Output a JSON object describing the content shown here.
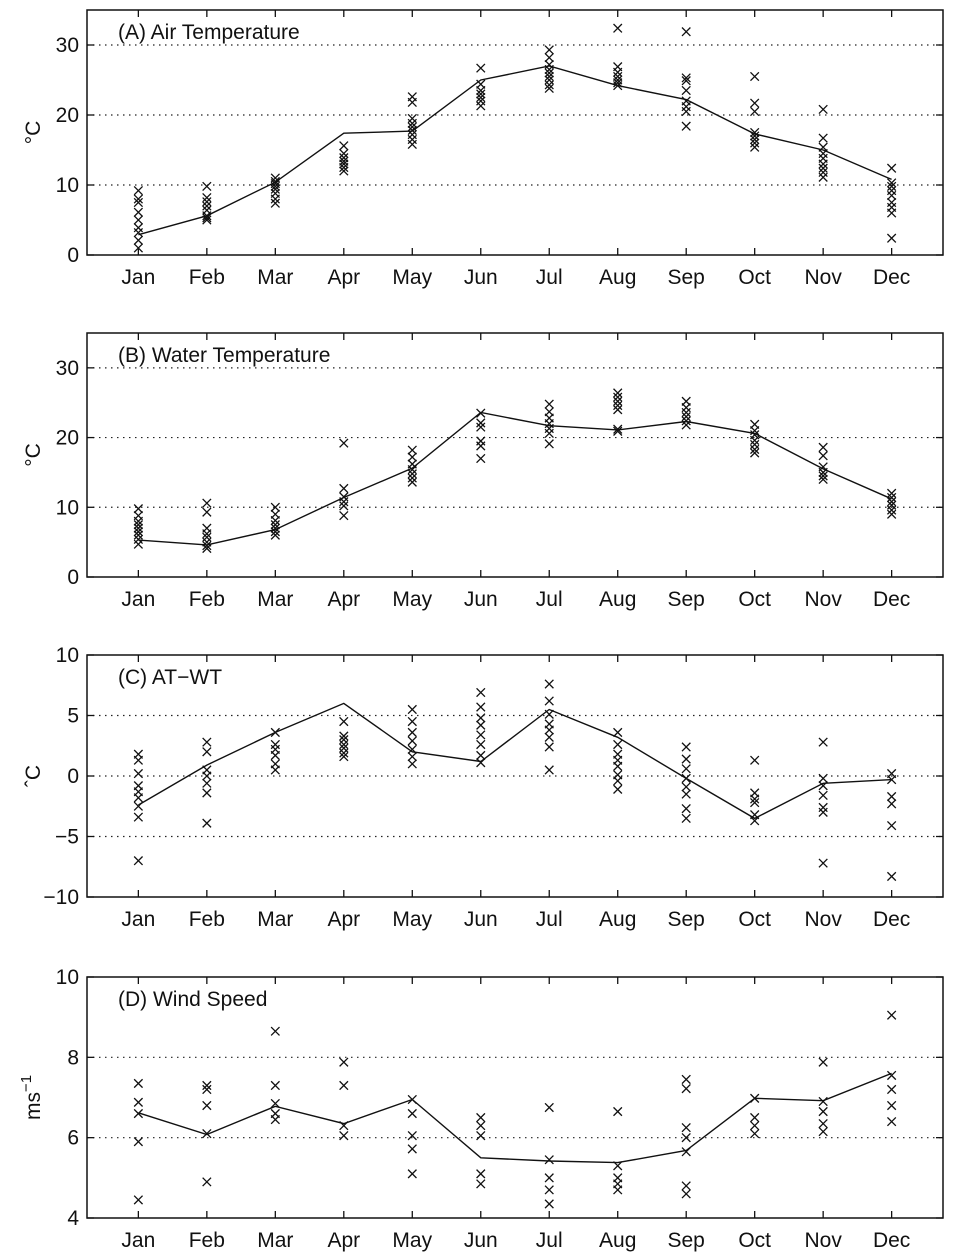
{
  "chart_data": [
    {
      "type": "line",
      "title": "(A) Air Temperature",
      "ylabel": "°C",
      "categories": [
        "Jan",
        "Feb",
        "Mar",
        "Apr",
        "May",
        "Jun",
        "Jul",
        "Aug",
        "Sep",
        "Oct",
        "Nov",
        "Dec"
      ],
      "ylim": [
        0,
        35
      ],
      "yticks": [
        0,
        10,
        20,
        30
      ],
      "grid": [
        10,
        20,
        30
      ],
      "series": [
        {
          "values": [
            2.9,
            5.6,
            10.4,
            17.4,
            17.7,
            25.0,
            27.0,
            24.2,
            22.2,
            17.3,
            15.0,
            10.8
          ]
        }
      ],
      "scatter": [
        [
          9.2,
          8.0,
          7.5,
          6.1,
          5.0,
          3.9,
          3.2,
          2.1,
          1.0
        ],
        [
          9.8,
          8.2,
          7.6,
          7.0,
          6.4,
          5.6,
          5.3,
          5.0
        ],
        [
          11.0,
          10.5,
          10.2,
          9.8,
          9.4,
          8.8,
          8.0,
          7.4
        ],
        [
          15.6,
          14.5,
          13.9,
          13.4,
          13.0,
          12.5,
          12.0
        ],
        [
          22.6,
          21.8,
          19.5,
          18.8,
          18.3,
          17.8,
          17.2,
          16.5,
          15.8
        ],
        [
          26.7,
          24.4,
          23.5,
          23.0,
          22.5,
          22.0,
          21.3
        ],
        [
          29.3,
          28.2,
          27.2,
          26.5,
          26.0,
          25.5,
          25.0,
          24.3,
          23.8
        ],
        [
          32.4,
          26.9,
          26.1,
          25.5,
          25.0,
          24.6,
          24.2
        ],
        [
          31.9,
          25.3,
          24.9,
          23.5,
          22.0,
          21.2,
          20.5,
          18.4
        ],
        [
          25.5,
          21.7,
          20.5,
          17.5,
          17.0,
          16.5,
          16.0,
          15.4
        ],
        [
          20.8,
          16.7,
          15.4,
          14.5,
          13.8,
          13.0,
          12.4,
          11.8,
          11.1
        ],
        [
          12.4,
          10.3,
          9.8,
          9.2,
          8.5,
          7.5,
          6.8,
          6.0,
          2.4
        ]
      ]
    },
    {
      "type": "line",
      "title": "(B) Water Temperature",
      "ylabel": "°C",
      "categories": [
        "Jan",
        "Feb",
        "Mar",
        "Apr",
        "May",
        "Jun",
        "Jul",
        "Aug",
        "Sep",
        "Oct",
        "Nov",
        "Dec"
      ],
      "ylim": [
        0,
        35
      ],
      "yticks": [
        0,
        10,
        20,
        30
      ],
      "grid": [
        10,
        20,
        30
      ],
      "series": [
        {
          "values": [
            5.3,
            4.6,
            6.8,
            11.4,
            15.6,
            23.6,
            21.7,
            21.1,
            22.3,
            20.6,
            15.5,
            11.2
          ]
        }
      ],
      "scatter": [
        [
          9.8,
          8.8,
          8.0,
          7.5,
          7.0,
          6.5,
          6.0,
          5.4,
          4.7
        ],
        [
          10.6,
          9.3,
          7.0,
          6.2,
          5.7,
          5.0,
          4.5,
          4.1
        ],
        [
          10.0,
          9.0,
          8.1,
          7.5,
          7.0,
          6.5,
          6.0
        ],
        [
          19.2,
          12.7,
          11.5,
          10.8,
          10.2,
          8.8
        ],
        [
          18.2,
          17.2,
          16.2,
          15.4,
          14.8,
          14.2,
          13.6
        ],
        [
          23.5,
          22.1,
          21.5,
          19.5,
          18.8,
          17.0
        ],
        [
          24.8,
          23.7,
          22.8,
          22.0,
          21.3,
          20.6,
          19.1
        ],
        [
          26.4,
          25.8,
          25.2,
          24.6,
          24.0,
          21.2,
          20.9
        ],
        [
          25.2,
          24.3,
          23.6,
          23.0,
          22.4,
          21.8
        ],
        [
          21.9,
          21.0,
          20.4,
          19.6,
          19.0,
          18.3,
          17.8
        ],
        [
          18.6,
          17.4,
          15.8,
          15.0,
          14.5,
          14.0
        ],
        [
          12.0,
          11.4,
          10.8,
          10.3,
          9.6,
          9.0
        ]
      ]
    },
    {
      "type": "line",
      "title": "(C) AT−WT",
      "ylabel": "ˆC",
      "categories": [
        "Jan",
        "Feb",
        "Mar",
        "Apr",
        "May",
        "Jun",
        "Jul",
        "Aug",
        "Sep",
        "Oct",
        "Nov",
        "Dec"
      ],
      "ylim": [
        -10,
        10
      ],
      "yticks": [
        -10,
        -5,
        0,
        5,
        10
      ],
      "grid": [
        -5,
        0,
        5
      ],
      "series": [
        {
          "values": [
            -2.4,
            0.9,
            3.6,
            6.0,
            2.0,
            1.2,
            5.5,
            3.2,
            -0.2,
            -3.5,
            -0.6,
            -0.3
          ]
        }
      ],
      "scatter": [
        [
          1.8,
          1.3,
          0.2,
          -0.8,
          -1.3,
          -1.8,
          -2.5,
          -3.4,
          -7.0
        ],
        [
          2.8,
          2.0,
          0.5,
          0.0,
          -0.6,
          -1.4,
          -3.9
        ],
        [
          3.6,
          2.6,
          2.2,
          1.7,
          1.0,
          0.5
        ],
        [
          4.5,
          3.3,
          3.0,
          2.6,
          2.3,
          1.9,
          1.6
        ],
        [
          5.5,
          4.5,
          3.6,
          2.9,
          2.2,
          1.6,
          1.0
        ],
        [
          6.9,
          5.7,
          4.8,
          4.2,
          3.4,
          2.6,
          1.7,
          1.1
        ],
        [
          7.6,
          6.2,
          5.1,
          4.3,
          3.8,
          3.2,
          2.4,
          0.5
        ],
        [
          3.6,
          2.6,
          1.8,
          1.3,
          0.8,
          0.1,
          -0.4,
          -1.1
        ],
        [
          2.4,
          1.4,
          0.6,
          -0.2,
          -0.9,
          -1.5,
          -2.7,
          -3.5
        ],
        [
          1.3,
          -1.4,
          -1.9,
          -2.2,
          -3.2,
          -3.7
        ],
        [
          2.8,
          -0.2,
          -0.8,
          -1.6,
          -2.6,
          -3.0,
          -7.2
        ],
        [
          0.2,
          -0.3,
          -1.7,
          -2.3,
          -4.1,
          -8.3
        ]
      ]
    },
    {
      "type": "line",
      "title": "(D) Wind Speed",
      "ylabel": "ms",
      "ylabel_sup": "−1",
      "categories": [
        "Jan",
        "Feb",
        "Mar",
        "Apr",
        "May",
        "Jun",
        "Jul",
        "Aug",
        "Sep",
        "Oct",
        "Nov",
        "Dec"
      ],
      "ylim": [
        4,
        10
      ],
      "yticks": [
        4,
        6,
        8,
        10
      ],
      "grid": [
        6,
        8
      ],
      "series": [
        {
          "values": [
            6.62,
            6.08,
            6.78,
            6.35,
            6.95,
            5.5,
            5.42,
            5.38,
            5.68,
            6.98,
            6.92,
            7.6
          ]
        }
      ],
      "scatter": [
        [
          7.35,
          6.88,
          6.6,
          5.9,
          4.45
        ],
        [
          7.3,
          7.2,
          6.8,
          6.1,
          4.9
        ],
        [
          8.65,
          7.3,
          6.85,
          6.6,
          6.45
        ],
        [
          7.88,
          7.3,
          6.3,
          6.05
        ],
        [
          6.95,
          6.6,
          6.05,
          5.72,
          5.1
        ],
        [
          6.5,
          6.3,
          6.05,
          5.1,
          4.85
        ],
        [
          6.75,
          5.45,
          5.0,
          4.7,
          4.35
        ],
        [
          6.65,
          5.3,
          5.0,
          4.85,
          4.7
        ],
        [
          7.45,
          7.22,
          6.25,
          6.0,
          5.65,
          4.8,
          4.6
        ],
        [
          6.98,
          6.5,
          6.3,
          6.1
        ],
        [
          7.88,
          6.9,
          6.65,
          6.35,
          6.15
        ],
        [
          9.05,
          7.55,
          7.2,
          6.8,
          6.4
        ]
      ]
    }
  ]
}
